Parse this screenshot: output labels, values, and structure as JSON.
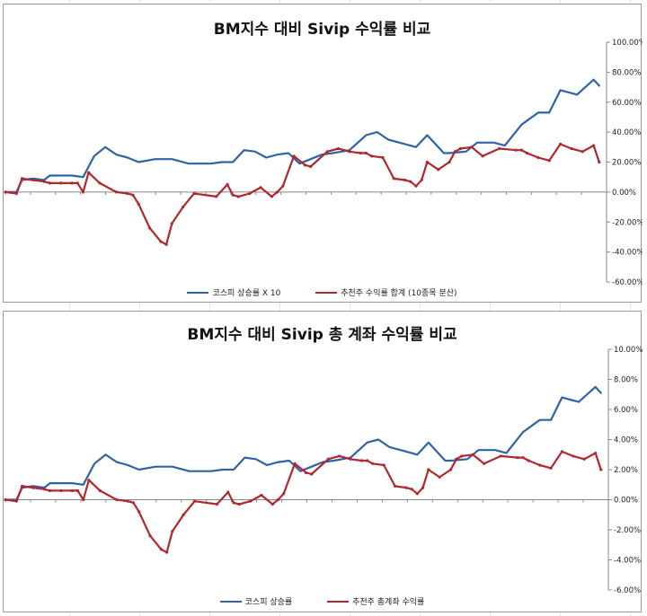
{
  "colors": {
    "kospi": "#2e63a8",
    "portfolio": "#b0282e",
    "axis": "#888888",
    "gridline": "#e4e4e4"
  },
  "chart_data": [
    {
      "type": "line",
      "title": "BM지수 대비 Sivip 수익률 비교",
      "ylim": [
        -0.6,
        1.0
      ],
      "yticks": [
        "100.00%",
        "80.00%",
        "60.00%",
        "40.00%",
        "20.00%",
        "0.00%",
        "-20.00%",
        "-40.00%",
        "-60.00%"
      ],
      "x_index_max": 108,
      "grid": false,
      "legend_position": "bottom",
      "series": [
        {
          "name": "코스피 상승률 X 10",
          "color_key": "kospi",
          "marker": false,
          "x": [
            0,
            2,
            3,
            5,
            7,
            8,
            10,
            12,
            14,
            16,
            18,
            20,
            22,
            24,
            27,
            30,
            33,
            35,
            37,
            39,
            41,
            43,
            45,
            47,
            49,
            51,
            53,
            55,
            57,
            59,
            62,
            65,
            67,
            69,
            71,
            74,
            76,
            79,
            80,
            83,
            85,
            88,
            90,
            93,
            96,
            98,
            100,
            103,
            106,
            107
          ],
          "values": [
            0.0,
            0.0,
            0.08,
            0.09,
            0.08,
            0.11,
            0.11,
            0.11,
            0.1,
            0.24,
            0.3,
            0.25,
            0.23,
            0.2,
            0.22,
            0.22,
            0.19,
            0.19,
            0.19,
            0.2,
            0.2,
            0.28,
            0.27,
            0.23,
            0.25,
            0.26,
            0.19,
            0.22,
            0.25,
            0.26,
            0.28,
            0.38,
            0.4,
            0.35,
            0.33,
            0.3,
            0.38,
            0.26,
            0.26,
            0.27,
            0.33,
            0.33,
            0.31,
            0.45,
            0.53,
            0.53,
            0.68,
            0.65,
            0.75,
            0.71
          ]
        },
        {
          "name": "추천주 수익률 합계 (10종목 분산)",
          "color_key": "portfolio",
          "marker": true,
          "x": [
            0,
            2,
            3,
            5,
            7,
            8,
            10,
            12,
            13,
            14,
            15,
            17,
            20,
            22,
            23,
            24,
            26,
            28,
            29,
            30,
            32,
            34,
            38,
            40,
            41,
            42,
            44,
            46,
            48,
            49,
            50,
            52,
            54,
            55,
            58,
            60,
            62,
            64,
            65,
            66,
            68,
            70,
            72,
            73,
            74,
            75,
            76,
            78,
            80,
            81,
            82,
            84,
            86,
            89,
            92,
            93,
            94,
            96,
            98,
            100,
            102,
            104,
            106,
            107
          ],
          "values": [
            0.0,
            -0.01,
            0.09,
            0.08,
            0.07,
            0.06,
            0.06,
            0.06,
            0.06,
            0.0,
            0.13,
            0.06,
            0.0,
            -0.01,
            -0.02,
            -0.08,
            -0.24,
            -0.33,
            -0.35,
            -0.21,
            -0.1,
            -0.01,
            -0.03,
            0.05,
            -0.02,
            -0.03,
            -0.01,
            0.03,
            -0.03,
            0.0,
            0.04,
            0.24,
            0.18,
            0.17,
            0.27,
            0.29,
            0.27,
            0.26,
            0.26,
            0.24,
            0.23,
            0.09,
            0.08,
            0.07,
            0.04,
            0.08,
            0.2,
            0.15,
            0.2,
            0.27,
            0.29,
            0.3,
            0.24,
            0.29,
            0.28,
            0.28,
            0.26,
            0.23,
            0.21,
            0.32,
            0.29,
            0.27,
            0.31,
            0.2
          ]
        }
      ]
    },
    {
      "type": "line",
      "title": "BM지수 대비 Sivip 총 계좌 수익률 비교",
      "ylim": [
        -0.06,
        0.1
      ],
      "yticks": [
        "10.00%",
        "8.00%",
        "6.00%",
        "4.00%",
        "2.00%",
        "0.00%",
        "-2.00%",
        "-4.00%",
        "-6.00%"
      ],
      "x_index_max": 108,
      "grid": false,
      "legend_position": "bottom",
      "series": [
        {
          "name": "코스피 상승률",
          "color_key": "kospi",
          "marker": false,
          "x": [
            0,
            2,
            3,
            5,
            7,
            8,
            10,
            12,
            14,
            16,
            18,
            20,
            22,
            24,
            27,
            30,
            33,
            35,
            37,
            39,
            41,
            43,
            45,
            47,
            49,
            51,
            53,
            55,
            57,
            59,
            62,
            65,
            67,
            69,
            71,
            74,
            76,
            79,
            80,
            83,
            85,
            88,
            90,
            93,
            96,
            98,
            100,
            103,
            106,
            107
          ],
          "values": [
            0.0,
            0.0,
            0.008,
            0.009,
            0.008,
            0.011,
            0.011,
            0.011,
            0.01,
            0.024,
            0.03,
            0.025,
            0.023,
            0.02,
            0.022,
            0.022,
            0.019,
            0.019,
            0.019,
            0.02,
            0.02,
            0.028,
            0.027,
            0.023,
            0.025,
            0.026,
            0.019,
            0.022,
            0.025,
            0.026,
            0.028,
            0.038,
            0.04,
            0.035,
            0.033,
            0.03,
            0.038,
            0.026,
            0.026,
            0.027,
            0.033,
            0.033,
            0.031,
            0.045,
            0.053,
            0.053,
            0.068,
            0.065,
            0.075,
            0.071
          ]
        },
        {
          "name": "추천주 총계좌 수익률",
          "color_key": "portfolio",
          "marker": true,
          "x": [
            0,
            2,
            3,
            5,
            7,
            8,
            10,
            12,
            13,
            14,
            15,
            17,
            20,
            22,
            23,
            24,
            26,
            28,
            29,
            30,
            32,
            34,
            38,
            40,
            41,
            42,
            44,
            46,
            48,
            49,
            50,
            52,
            54,
            55,
            58,
            60,
            62,
            64,
            65,
            66,
            68,
            70,
            72,
            73,
            74,
            75,
            76,
            78,
            80,
            81,
            82,
            84,
            86,
            89,
            92,
            93,
            94,
            96,
            98,
            100,
            102,
            104,
            106,
            107
          ],
          "values": [
            0.0,
            -0.001,
            0.009,
            0.008,
            0.007,
            0.006,
            0.006,
            0.006,
            0.006,
            0.0,
            0.013,
            0.006,
            0.0,
            -0.001,
            -0.002,
            -0.008,
            -0.024,
            -0.033,
            -0.035,
            -0.021,
            -0.01,
            -0.001,
            -0.003,
            0.005,
            -0.002,
            -0.003,
            -0.001,
            0.003,
            -0.003,
            0.0,
            0.004,
            0.024,
            0.018,
            0.017,
            0.027,
            0.029,
            0.027,
            0.026,
            0.026,
            0.024,
            0.023,
            0.009,
            0.008,
            0.007,
            0.004,
            0.008,
            0.02,
            0.015,
            0.02,
            0.027,
            0.029,
            0.03,
            0.024,
            0.029,
            0.028,
            0.028,
            0.026,
            0.023,
            0.021,
            0.032,
            0.029,
            0.027,
            0.031,
            0.02
          ]
        }
      ]
    }
  ]
}
